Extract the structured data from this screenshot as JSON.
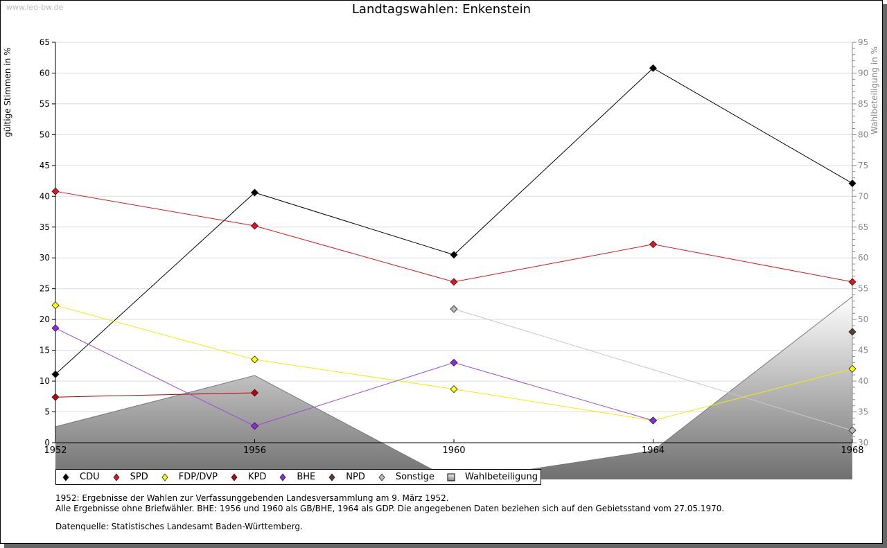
{
  "watermark": "www.leo-bw.de",
  "chart_data": {
    "type": "line",
    "title": "Landtagswahlen: Enkenstein",
    "xlabel": "",
    "ylabel": "gültige Stimmen in %",
    "ylabel_right": "Wahlbeteiligung in %",
    "categories": [
      "1952",
      "1956",
      "1960",
      "1964",
      "1968"
    ],
    "ylim": [
      0,
      65
    ],
    "ylim_right": [
      30,
      95
    ],
    "yticks": [
      "0",
      "5",
      "10",
      "15",
      "20",
      "25",
      "30",
      "35",
      "40",
      "45",
      "50",
      "55",
      "60",
      "65"
    ],
    "yticks_right": [
      "30",
      "35",
      "40",
      "45",
      "50",
      "55",
      "60",
      "65",
      "70",
      "75",
      "80",
      "85",
      "90",
      "95"
    ],
    "grid": true,
    "legend_position": "bottom-left",
    "series": [
      {
        "name": "CDU",
        "color": "#000000",
        "line": "#000000",
        "values": [
          11.1,
          40.6,
          30.5,
          60.8,
          42.1
        ]
      },
      {
        "name": "SPD",
        "color": "#e0141e",
        "line": "#e0141e",
        "values": [
          40.8,
          35.2,
          26.1,
          32.2,
          26.1
        ]
      },
      {
        "name": "FDP/DVP",
        "color": "#ffff00",
        "line": "#f0f000",
        "values": [
          22.3,
          13.5,
          8.7,
          3.6,
          12.0
        ]
      },
      {
        "name": "KPD",
        "color": "#c00000",
        "line": "#c00000",
        "values": [
          7.4,
          8.1,
          null,
          null,
          null
        ]
      },
      {
        "name": "BHE",
        "color": "#8a2be2",
        "line": "#9a4bd8",
        "values": [
          18.6,
          2.7,
          13.0,
          3.6,
          null
        ]
      },
      {
        "name": "NPD",
        "color": "#5a4030",
        "line": "#5a4030",
        "values": [
          null,
          null,
          null,
          null,
          18.0
        ]
      },
      {
        "name": "Sonstige",
        "color": "#bbbbbb",
        "line": "#c8c8c8",
        "values": [
          null,
          null,
          21.7,
          null,
          2.0
        ]
      }
    ],
    "area_series": {
      "name": "Wahlbeteiligung",
      "axis": "right",
      "values": [
        32.6,
        40.9,
        23.8,
        28.7,
        53.7
      ]
    }
  },
  "notes": [
    "1952: Ergebnisse der Wahlen zur Verfassunggebenden Landesversammlung am 9. März 1952.",
    "Alle Ergebnisse ohne Briefwähler. BHE: 1956 und 1960 als GB/BHE, 1964 als GDP. Die angegebenen Daten beziehen sich auf den Gebietsstand vom 27.05.1970.",
    "Datenquelle: Statistisches Landesamt Baden-Württemberg."
  ]
}
